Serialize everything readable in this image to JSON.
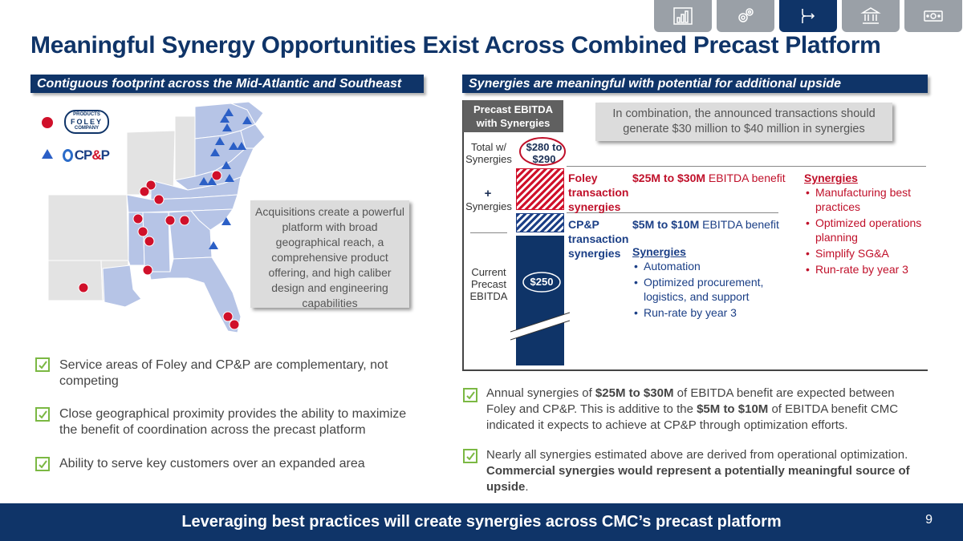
{
  "nav": {
    "tabs": [
      {
        "icon": "bar-chart-icon",
        "active": false
      },
      {
        "icon": "gears-icon",
        "active": false
      },
      {
        "icon": "merge-arrow-icon",
        "active": true
      },
      {
        "icon": "bank-building-icon",
        "active": false
      },
      {
        "icon": "money-bill-icon",
        "active": false
      }
    ]
  },
  "title": "Meaningful Synergy Opportunities Exist Across Combined Precast Platform",
  "left_section": {
    "header": "Contiguous footprint across the Mid-Atlantic and Southeast",
    "legend": {
      "foley": {
        "marker_color": "#d0102a",
        "logo_top": "PRODUCTS",
        "logo_main": "FOLEY",
        "logo_bottom": "COMPANY"
      },
      "cpp": {
        "marker_color": "#2b5fc6",
        "logo_text_a": "CP",
        "logo_text_b": "&",
        "logo_text_c": "P"
      }
    },
    "callout": "Acquisitions create a powerful platform with broad geographical reach, a comprehensive product offering, and high caliber design and engineering capabilities",
    "bullets": [
      "Service areas of Foley and CP&P are complementary, not competing",
      "Close geographical proximity provides the ability to maximize the benefit of coordination across the precast platform",
      "Ability to serve key customers over an expanded area"
    ]
  },
  "right_section": {
    "header": "Synergies are meaningful with potential for additional upside",
    "chart_header": "Precast EBITDA with Synergies",
    "callout": "In combination, the announced transactions should generate $30 million to $40 million in synergies",
    "labels": {
      "total": "Total w/ Synergies",
      "total_value": "$280 to $290",
      "plus": "+",
      "synergies": "Synergies",
      "current": "Current Precast EBITDA",
      "current_value": "$250"
    },
    "foley": {
      "label": "Foley transaction synergies",
      "range": "$25M to $30M",
      "range_suffix": " EBITDA benefit",
      "list_title": "Synergies",
      "items": [
        "Manufacturing best practices",
        "Optimized operations planning",
        "Simplify SG&A",
        "Run-rate by year 3"
      ]
    },
    "cpp": {
      "label": "CP&P transaction synergies",
      "range": "$5M to $10M",
      "range_suffix": " EBITDA benefit",
      "list_title": "Synergies",
      "items": [
        "Automation",
        "Optimized procurement, logistics, and support",
        "Run-rate by year 3"
      ]
    },
    "bullet1": {
      "a": "Annual synergies of ",
      "b": "$25M to $30M",
      "c": " of EBITDA benefit are expected between Foley and CP&P. This is additive to the ",
      "d": "$5M to $10M",
      "e": " of EBITDA benefit CMC indicated it expects to achieve at CP&P through optimization efforts."
    },
    "bullet2": {
      "a": "Nearly all synergies estimated above are derived from operational optimization. ",
      "b": "Commercial synergies would represent a potentially meaningful source of upside",
      "c": "."
    }
  },
  "footer": "Leveraging best practices will create synergies across CMC’s precast platform",
  "page_number": "9"
}
